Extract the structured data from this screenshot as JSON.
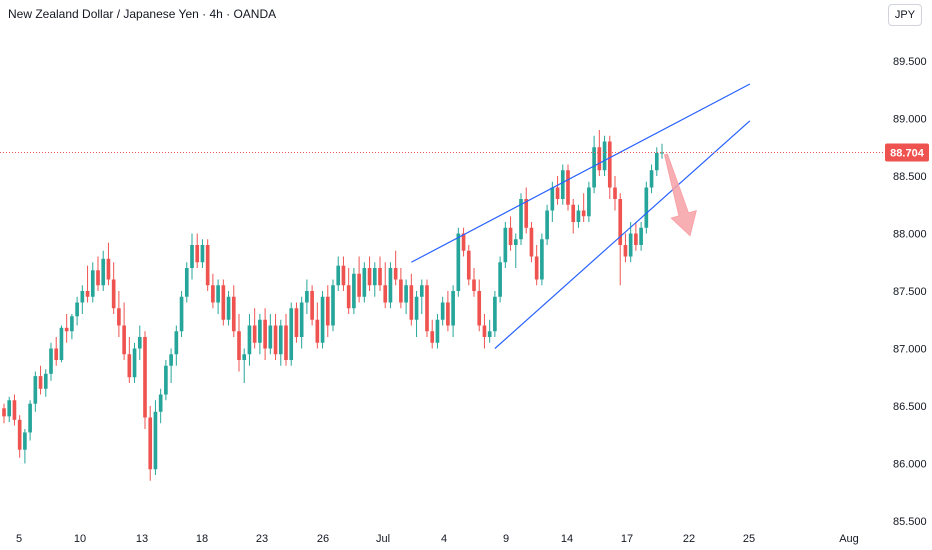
{
  "header": {
    "title": "New Zealand Dollar / Japanese Yen · 4h · OANDA",
    "currency_button": "JPY"
  },
  "colors": {
    "up": "#26a69a",
    "down": "#ef5350",
    "trendline": "#2962ff",
    "price_line": "#ef5350",
    "price_tag_bg": "#ef5350",
    "arrow": "#f7a1a6"
  },
  "chart_data": {
    "type": "candlestick",
    "title": "New Zealand Dollar / Japanese Yen · 4h · OANDA",
    "ylim": [
      85.5,
      89.75
    ],
    "y_ticks": [
      "85.500",
      "86.000",
      "86.500",
      "87.000",
      "87.500",
      "88.000",
      "88.500",
      "89.000",
      "89.500"
    ],
    "x_ticks": [
      "5",
      "10",
      "13",
      "18",
      "23",
      "26",
      "Jul",
      "4",
      "9",
      "14",
      "17",
      "22",
      "25",
      "Aug"
    ],
    "last_price": "88.704",
    "series": [
      {
        "o": 86.48,
        "h": 86.52,
        "l": 86.35,
        "c": 86.41
      },
      {
        "o": 86.41,
        "h": 86.58,
        "l": 86.36,
        "c": 86.55
      },
      {
        "o": 86.55,
        "h": 86.6,
        "l": 86.33,
        "c": 86.38
      },
      {
        "o": 86.38,
        "h": 86.42,
        "l": 86.05,
        "c": 86.12
      },
      {
        "o": 86.12,
        "h": 86.3,
        "l": 86.0,
        "c": 86.27
      },
      {
        "o": 86.27,
        "h": 86.55,
        "l": 86.2,
        "c": 86.52
      },
      {
        "o": 86.52,
        "h": 86.8,
        "l": 86.45,
        "c": 86.76
      },
      {
        "o": 86.76,
        "h": 86.85,
        "l": 86.6,
        "c": 86.65
      },
      {
        "o": 86.65,
        "h": 86.82,
        "l": 86.58,
        "c": 86.78
      },
      {
        "o": 86.78,
        "h": 87.05,
        "l": 86.72,
        "c": 87.0
      },
      {
        "o": 87.0,
        "h": 87.1,
        "l": 86.85,
        "c": 86.9
      },
      {
        "o": 86.9,
        "h": 87.2,
        "l": 86.88,
        "c": 87.18
      },
      {
        "o": 87.18,
        "h": 87.3,
        "l": 87.05,
        "c": 87.15
      },
      {
        "o": 87.15,
        "h": 87.3,
        "l": 87.08,
        "c": 87.28
      },
      {
        "o": 87.28,
        "h": 87.45,
        "l": 87.2,
        "c": 87.4
      },
      {
        "o": 87.4,
        "h": 87.55,
        "l": 87.3,
        "c": 87.5
      },
      {
        "o": 87.5,
        "h": 87.72,
        "l": 87.4,
        "c": 87.45
      },
      {
        "o": 87.45,
        "h": 87.75,
        "l": 87.4,
        "c": 87.68
      },
      {
        "o": 87.68,
        "h": 87.8,
        "l": 87.5,
        "c": 87.55
      },
      {
        "o": 87.55,
        "h": 87.85,
        "l": 87.5,
        "c": 87.78
      },
      {
        "o": 87.78,
        "h": 87.92,
        "l": 87.55,
        "c": 87.6
      },
      {
        "o": 87.6,
        "h": 87.75,
        "l": 87.3,
        "c": 87.35
      },
      {
        "o": 87.35,
        "h": 87.5,
        "l": 87.1,
        "c": 87.2
      },
      {
        "o": 87.2,
        "h": 87.4,
        "l": 86.9,
        "c": 86.95
      },
      {
        "o": 86.95,
        "h": 87.1,
        "l": 86.7,
        "c": 86.75
      },
      {
        "o": 86.75,
        "h": 87.05,
        "l": 86.7,
        "c": 87.0
      },
      {
        "o": 87.0,
        "h": 87.2,
        "l": 86.9,
        "c": 87.1
      },
      {
        "o": 87.1,
        "h": 87.15,
        "l": 86.3,
        "c": 86.4
      },
      {
        "o": 86.4,
        "h": 86.5,
        "l": 85.85,
        "c": 85.95
      },
      {
        "o": 85.95,
        "h": 86.55,
        "l": 85.9,
        "c": 86.45
      },
      {
        "o": 86.45,
        "h": 86.65,
        "l": 86.35,
        "c": 86.6
      },
      {
        "o": 86.6,
        "h": 86.9,
        "l": 86.55,
        "c": 86.85
      },
      {
        "o": 86.85,
        "h": 87.0,
        "l": 86.7,
        "c": 86.95
      },
      {
        "o": 86.95,
        "h": 87.2,
        "l": 86.85,
        "c": 87.15
      },
      {
        "o": 87.15,
        "h": 87.5,
        "l": 87.1,
        "c": 87.45
      },
      {
        "o": 87.45,
        "h": 87.75,
        "l": 87.4,
        "c": 87.7
      },
      {
        "o": 87.7,
        "h": 88.0,
        "l": 87.6,
        "c": 87.9
      },
      {
        "o": 87.9,
        "h": 88.0,
        "l": 87.7,
        "c": 87.75
      },
      {
        "o": 87.75,
        "h": 87.95,
        "l": 87.7,
        "c": 87.9
      },
      {
        "o": 87.9,
        "h": 87.95,
        "l": 87.5,
        "c": 87.55
      },
      {
        "o": 87.55,
        "h": 87.65,
        "l": 87.35,
        "c": 87.4
      },
      {
        "o": 87.4,
        "h": 87.6,
        "l": 87.3,
        "c": 87.55
      },
      {
        "o": 87.55,
        "h": 87.6,
        "l": 87.2,
        "c": 87.25
      },
      {
        "o": 87.25,
        "h": 87.5,
        "l": 87.2,
        "c": 87.45
      },
      {
        "o": 87.45,
        "h": 87.55,
        "l": 87.1,
        "c": 87.15
      },
      {
        "o": 87.15,
        "h": 87.3,
        "l": 86.8,
        "c": 86.9
      },
      {
        "o": 86.9,
        "h": 87.0,
        "l": 86.7,
        "c": 86.95
      },
      {
        "o": 86.95,
        "h": 87.3,
        "l": 86.85,
        "c": 87.2
      },
      {
        "o": 87.2,
        "h": 87.35,
        "l": 87.0,
        "c": 87.05
      },
      {
        "o": 87.05,
        "h": 87.3,
        "l": 86.95,
        "c": 87.25
      },
      {
        "o": 87.25,
        "h": 87.35,
        "l": 86.9,
        "c": 87.0
      },
      {
        "o": 87.0,
        "h": 87.3,
        "l": 86.95,
        "c": 87.2
      },
      {
        "o": 87.2,
        "h": 87.3,
        "l": 86.9,
        "c": 86.95
      },
      {
        "o": 86.95,
        "h": 87.25,
        "l": 86.85,
        "c": 87.2
      },
      {
        "o": 87.2,
        "h": 87.3,
        "l": 86.85,
        "c": 86.9
      },
      {
        "o": 86.9,
        "h": 87.4,
        "l": 86.85,
        "c": 87.35
      },
      {
        "o": 87.35,
        "h": 87.4,
        "l": 87.05,
        "c": 87.1
      },
      {
        "o": 87.1,
        "h": 87.45,
        "l": 87.0,
        "c": 87.4
      },
      {
        "o": 87.4,
        "h": 87.6,
        "l": 87.3,
        "c": 87.5
      },
      {
        "o": 87.5,
        "h": 87.55,
        "l": 87.2,
        "c": 87.25
      },
      {
        "o": 87.25,
        "h": 87.4,
        "l": 87.0,
        "c": 87.05
      },
      {
        "o": 87.05,
        "h": 87.5,
        "l": 87.0,
        "c": 87.45
      },
      {
        "o": 87.45,
        "h": 87.55,
        "l": 87.1,
        "c": 87.2
      },
      {
        "o": 87.2,
        "h": 87.6,
        "l": 87.15,
        "c": 87.55
      },
      {
        "o": 87.55,
        "h": 87.8,
        "l": 87.5,
        "c": 87.72
      },
      {
        "o": 87.72,
        "h": 87.8,
        "l": 87.5,
        "c": 87.55
      },
      {
        "o": 87.55,
        "h": 87.7,
        "l": 87.3,
        "c": 87.35
      },
      {
        "o": 87.35,
        "h": 87.7,
        "l": 87.3,
        "c": 87.65
      },
      {
        "o": 87.65,
        "h": 87.8,
        "l": 87.4,
        "c": 87.45
      },
      {
        "o": 87.45,
        "h": 87.75,
        "l": 87.4,
        "c": 87.7
      },
      {
        "o": 87.7,
        "h": 87.8,
        "l": 87.5,
        "c": 87.55
      },
      {
        "o": 87.55,
        "h": 87.75,
        "l": 87.45,
        "c": 87.7
      },
      {
        "o": 87.7,
        "h": 87.8,
        "l": 87.5,
        "c": 87.55
      },
      {
        "o": 87.55,
        "h": 87.75,
        "l": 87.35,
        "c": 87.4
      },
      {
        "o": 87.4,
        "h": 87.75,
        "l": 87.35,
        "c": 87.7
      },
      {
        "o": 87.7,
        "h": 87.85,
        "l": 87.55,
        "c": 87.6
      },
      {
        "o": 87.6,
        "h": 87.7,
        "l": 87.35,
        "c": 87.4
      },
      {
        "o": 87.4,
        "h": 87.6,
        "l": 87.3,
        "c": 87.55
      },
      {
        "o": 87.55,
        "h": 87.65,
        "l": 87.2,
        "c": 87.25
      },
      {
        "o": 87.25,
        "h": 87.5,
        "l": 87.1,
        "c": 87.45
      },
      {
        "o": 87.45,
        "h": 87.6,
        "l": 87.3,
        "c": 87.55
      },
      {
        "o": 87.55,
        "h": 87.6,
        "l": 87.1,
        "c": 87.15
      },
      {
        "o": 87.15,
        "h": 87.25,
        "l": 87.0,
        "c": 87.05
      },
      {
        "o": 87.05,
        "h": 87.3,
        "l": 87.0,
        "c": 87.25
      },
      {
        "o": 87.25,
        "h": 87.45,
        "l": 87.2,
        "c": 87.4
      },
      {
        "o": 87.4,
        "h": 87.5,
        "l": 87.15,
        "c": 87.2
      },
      {
        "o": 87.2,
        "h": 87.55,
        "l": 87.1,
        "c": 87.5
      },
      {
        "o": 87.5,
        "h": 88.05,
        "l": 87.45,
        "c": 88.0
      },
      {
        "o": 88.0,
        "h": 88.05,
        "l": 87.8,
        "c": 87.85
      },
      {
        "o": 87.85,
        "h": 87.9,
        "l": 87.55,
        "c": 87.6
      },
      {
        "o": 87.6,
        "h": 87.7,
        "l": 87.45,
        "c": 87.5
      },
      {
        "o": 87.5,
        "h": 87.6,
        "l": 87.15,
        "c": 87.2
      },
      {
        "o": 87.2,
        "h": 87.3,
        "l": 87.0,
        "c": 87.1
      },
      {
        "o": 87.1,
        "h": 87.25,
        "l": 87.05,
        "c": 87.15
      },
      {
        "o": 87.15,
        "h": 87.5,
        "l": 87.1,
        "c": 87.45
      },
      {
        "o": 87.45,
        "h": 87.8,
        "l": 87.4,
        "c": 87.75
      },
      {
        "o": 87.75,
        "h": 88.1,
        "l": 87.7,
        "c": 88.05
      },
      {
        "o": 88.05,
        "h": 88.15,
        "l": 87.85,
        "c": 87.9
      },
      {
        "o": 87.9,
        "h": 88.0,
        "l": 87.7,
        "c": 87.95
      },
      {
        "o": 87.95,
        "h": 88.35,
        "l": 87.9,
        "c": 88.3
      },
      {
        "o": 88.3,
        "h": 88.4,
        "l": 88.0,
        "c": 88.05
      },
      {
        "o": 88.05,
        "h": 88.1,
        "l": 87.75,
        "c": 87.8
      },
      {
        "o": 87.8,
        "h": 87.9,
        "l": 87.55,
        "c": 87.6
      },
      {
        "o": 87.6,
        "h": 88.0,
        "l": 87.55,
        "c": 87.95
      },
      {
        "o": 87.95,
        "h": 88.25,
        "l": 87.9,
        "c": 88.2
      },
      {
        "o": 88.2,
        "h": 88.45,
        "l": 88.1,
        "c": 88.4
      },
      {
        "o": 88.4,
        "h": 88.5,
        "l": 88.25,
        "c": 88.3
      },
      {
        "o": 88.3,
        "h": 88.6,
        "l": 88.25,
        "c": 88.55
      },
      {
        "o": 88.55,
        "h": 88.6,
        "l": 88.2,
        "c": 88.25
      },
      {
        "o": 88.25,
        "h": 88.3,
        "l": 88.0,
        "c": 88.1
      },
      {
        "o": 88.1,
        "h": 88.25,
        "l": 88.05,
        "c": 88.2
      },
      {
        "o": 88.2,
        "h": 88.35,
        "l": 88.1,
        "c": 88.15
      },
      {
        "o": 88.15,
        "h": 88.45,
        "l": 88.1,
        "c": 88.4
      },
      {
        "o": 88.4,
        "h": 88.85,
        "l": 88.35,
        "c": 88.75
      },
      {
        "o": 88.75,
        "h": 88.9,
        "l": 88.5,
        "c": 88.55
      },
      {
        "o": 88.55,
        "h": 88.85,
        "l": 88.5,
        "c": 88.8
      },
      {
        "o": 88.8,
        "h": 88.85,
        "l": 88.3,
        "c": 88.4
      },
      {
        "o": 88.4,
        "h": 88.5,
        "l": 88.2,
        "c": 88.3
      },
      {
        "o": 88.3,
        "h": 88.35,
        "l": 87.55,
        "c": 87.9
      },
      {
        "o": 87.9,
        "h": 88.0,
        "l": 87.75,
        "c": 87.8
      },
      {
        "o": 87.8,
        "h": 88.1,
        "l": 87.75,
        "c": 88.0
      },
      {
        "o": 88.0,
        "h": 88.1,
        "l": 87.85,
        "c": 87.9
      },
      {
        "o": 87.9,
        "h": 88.1,
        "l": 87.85,
        "c": 88.05
      },
      {
        "o": 88.05,
        "h": 88.45,
        "l": 88.0,
        "c": 88.4
      },
      {
        "o": 88.4,
        "h": 88.6,
        "l": 88.35,
        "c": 88.55
      },
      {
        "o": 88.55,
        "h": 88.75,
        "l": 88.5,
        "c": 88.7
      },
      {
        "o": 88.7,
        "h": 88.78,
        "l": 88.65,
        "c": 88.704
      }
    ],
    "trendlines": [
      {
        "name": "wedge-upper",
        "from": {
          "index": 78,
          "price": 87.75
        },
        "to": {
          "index": 139,
          "price": 89.3
        }
      },
      {
        "name": "wedge-lower",
        "from": {
          "index": 94,
          "price": 87.0
        },
        "to": {
          "index": 139,
          "price": 88.98
        }
      }
    ],
    "projection": {
      "from_price": 88.704,
      "to_price": 88.0
    }
  }
}
